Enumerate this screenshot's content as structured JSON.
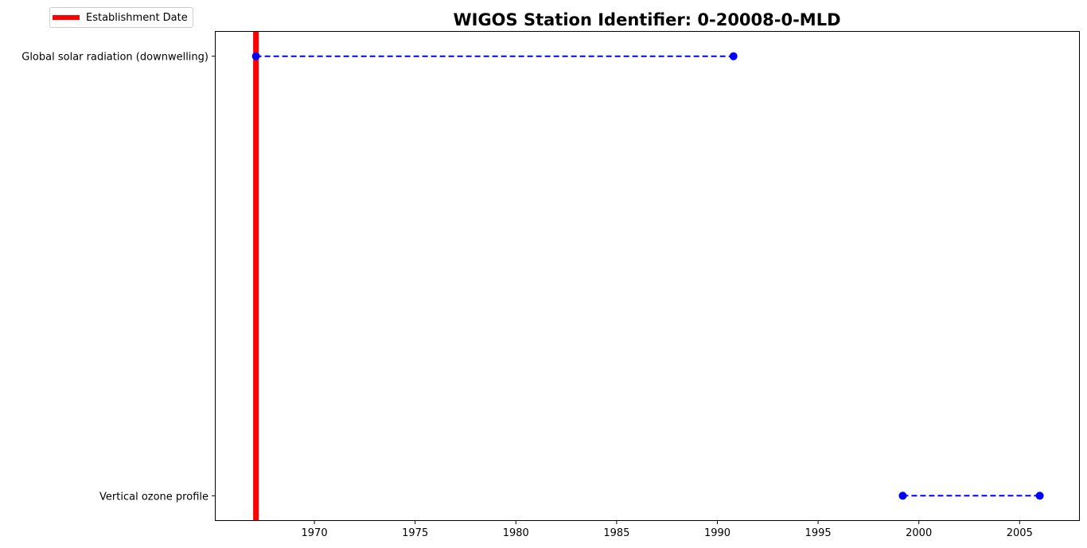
{
  "chart_data": {
    "type": "timeline",
    "title": "WIGOS Station Identifier: 0-20008-0-MLD",
    "xlabel": "",
    "ylabel": "",
    "xlim": [
      1965.1,
      2007.95
    ],
    "x_ticks": [
      1970,
      1975,
      1980,
      1985,
      1990,
      1995,
      2000,
      2005
    ],
    "categories": [
      "Global solar radiation (downwelling)",
      "Vertical ozone profile"
    ],
    "periods": [
      {
        "category": "Global solar radiation (downwelling)",
        "start": 1967.1,
        "end": 1990.8
      },
      {
        "category": "Vertical ozone profile",
        "start": 1999.2,
        "end": 2006.0
      }
    ],
    "establishment_date": 1967.1,
    "legend": {
      "position": "upper-left",
      "entries": [
        {
          "label": "Establishment Date",
          "color": "#ff0000"
        }
      ]
    },
    "colors": {
      "period": "#0000ff",
      "establishment": "#ff0000"
    },
    "grid": false
  }
}
